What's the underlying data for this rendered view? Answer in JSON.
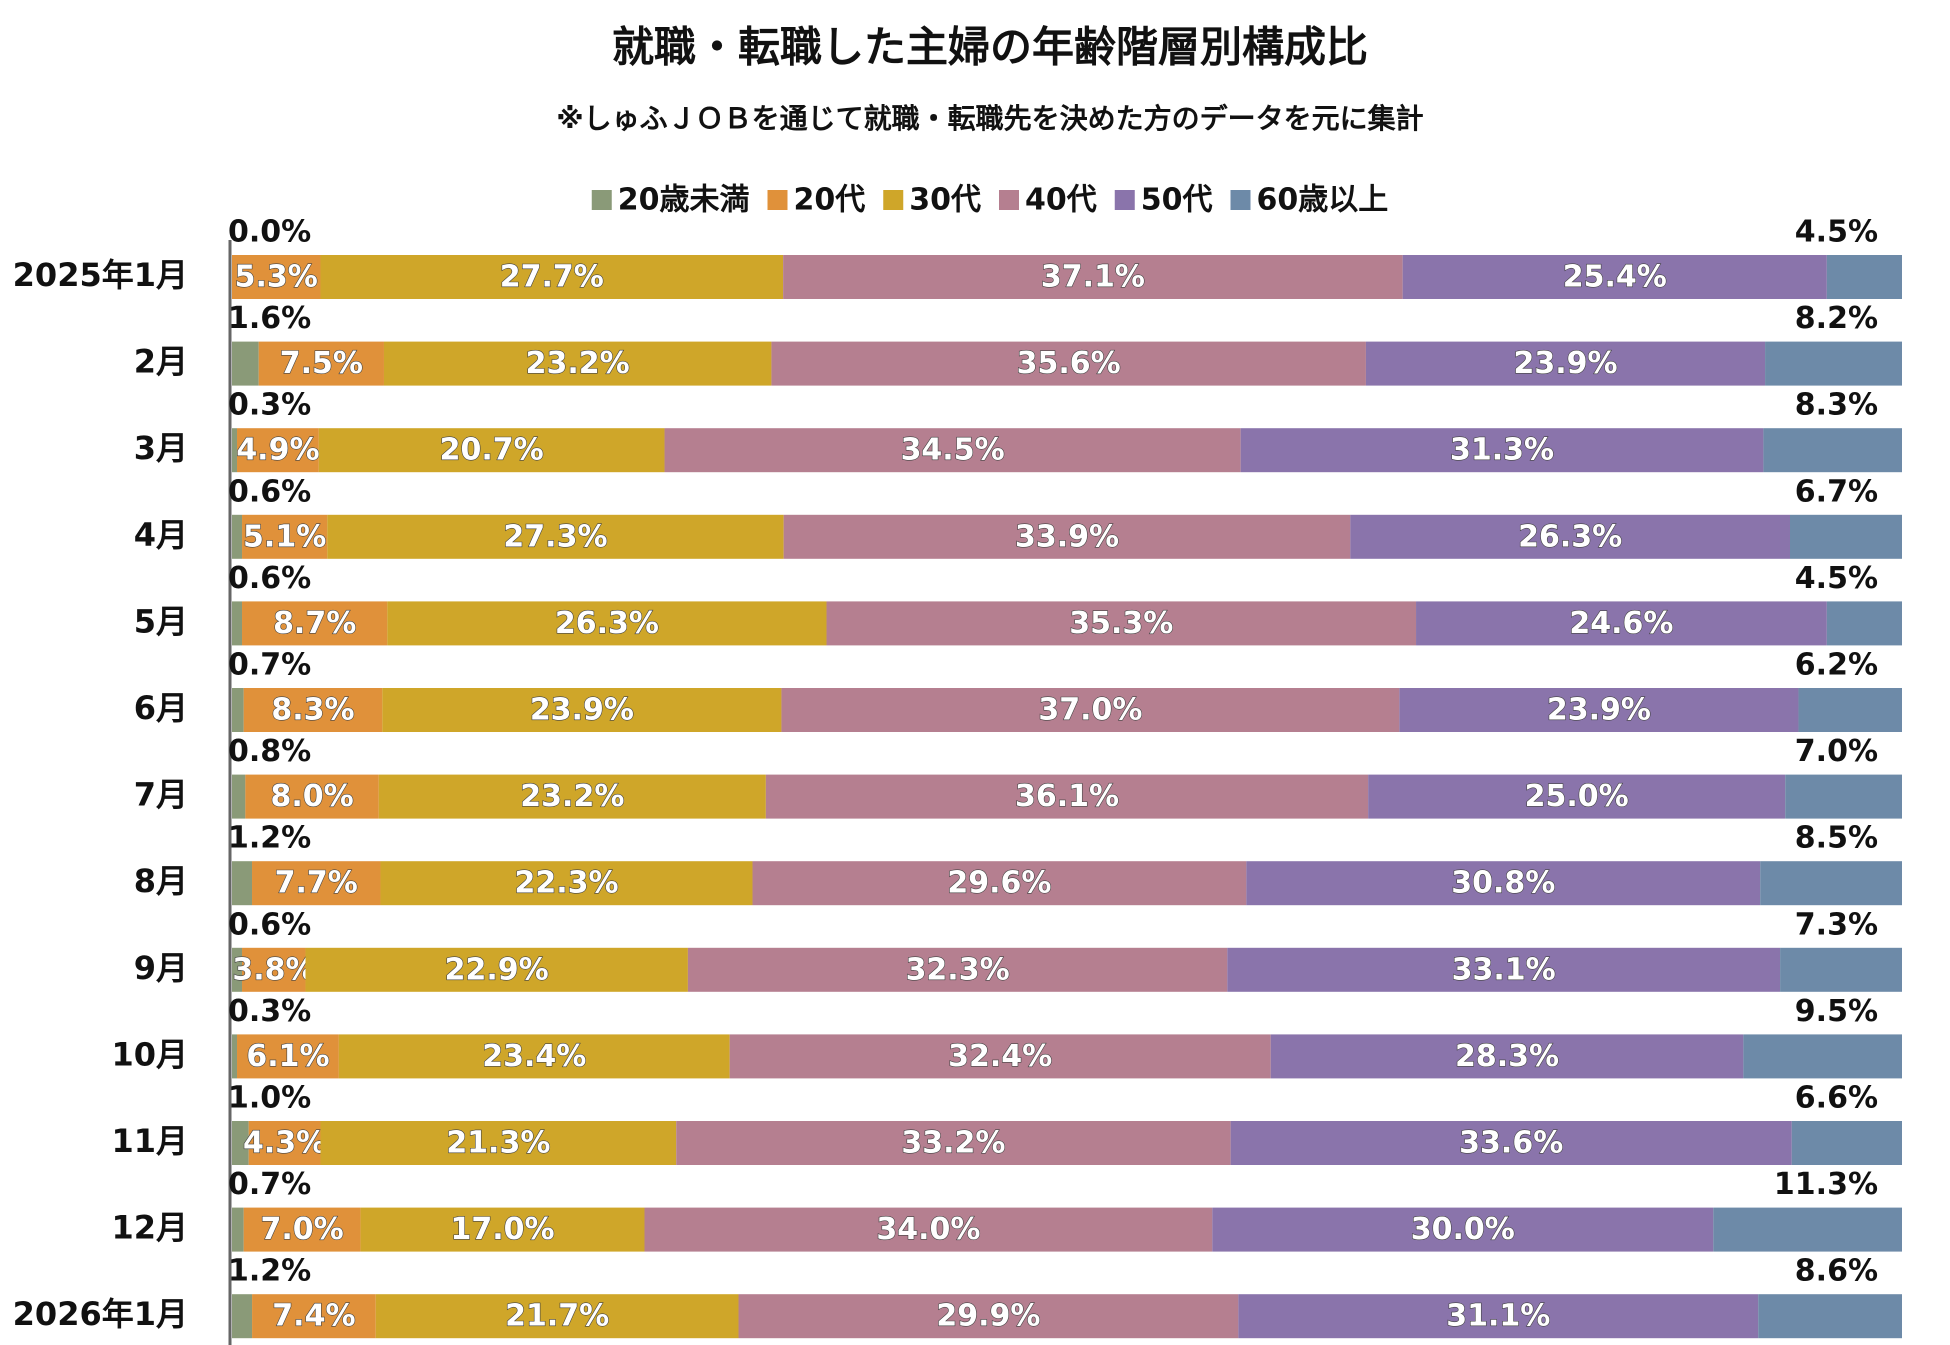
{
  "chart_data": {
    "type": "stacked-bar-horizontal",
    "title": "就職・転職した主婦の年齢階層別構成比",
    "subtitle": "※しゅふＪＯＢを通じて就職・転職先を決めた方のデータを元に集計",
    "categories": [
      "2025年1月",
      "2月",
      "3月",
      "4月",
      "5月",
      "6月",
      "7月",
      "8月",
      "9月",
      "10月",
      "11月",
      "12月",
      "2026年1月"
    ],
    "series": [
      {
        "name": "20歳未満",
        "color": "#8a9a78",
        "values": [
          0.0,
          1.6,
          0.3,
          0.6,
          0.6,
          0.7,
          0.8,
          1.2,
          0.6,
          0.3,
          1.0,
          0.7,
          1.2
        ],
        "value_labels": [
          "0.0%",
          "1.6%",
          "0.3%",
          "0.6%",
          "0.6%",
          "0.7%",
          "0.8%",
          "1.2%",
          "0.6%",
          "0.3%",
          "1.0%",
          "0.7%",
          "1.2%"
        ]
      },
      {
        "name": "20代",
        "color": "#e0913a",
        "values": [
          5.3,
          7.5,
          4.9,
          5.1,
          8.7,
          8.3,
          8.0,
          7.7,
          3.8,
          6.1,
          4.3,
          7.0,
          7.4
        ],
        "value_labels": [
          "5.3%",
          "7.5%",
          "4.9%",
          "5.1%",
          "8.7%",
          "8.3%",
          "8.0%",
          "7.7%",
          "3.8%",
          "6.1%",
          "4.3%",
          "7.0%",
          "7.4%"
        ]
      },
      {
        "name": "30代",
        "color": "#cfa629",
        "values": [
          27.7,
          23.2,
          20.7,
          27.3,
          26.3,
          23.9,
          23.2,
          22.3,
          22.9,
          23.4,
          21.3,
          17.0,
          21.7
        ],
        "value_labels": [
          "27.7%",
          "23.2%",
          "20.7%",
          "27.3%",
          "26.3%",
          "23.9%",
          "23.2%",
          "22.3%",
          "22.9%",
          "23.4%",
          "21.3%",
          "17.0%",
          "21.7%"
        ]
      },
      {
        "name": "40代",
        "color": "#b57f90",
        "values": [
          37.1,
          35.6,
          34.5,
          33.9,
          35.3,
          37.0,
          36.1,
          29.6,
          32.3,
          32.4,
          33.2,
          34.0,
          29.9
        ],
        "value_labels": [
          "37.1%",
          "35.6%",
          "34.5%",
          "33.9%",
          "35.3%",
          "37.0%",
          "36.1%",
          "29.6%",
          "32.3%",
          "32.4%",
          "33.2%",
          "34.0%",
          "29.9%"
        ]
      },
      {
        "name": "50代",
        "color": "#8a74ab",
        "values": [
          25.4,
          23.9,
          31.3,
          26.3,
          24.6,
          23.9,
          25.0,
          30.8,
          33.1,
          28.3,
          33.6,
          30.0,
          31.1
        ],
        "value_labels": [
          "25.4%",
          "23.9%",
          "31.3%",
          "26.3%",
          "24.6%",
          "23.9%",
          "25.0%",
          "30.8%",
          "33.1%",
          "28.3%",
          "33.6%",
          "30.0%",
          "31.1%"
        ]
      },
      {
        "name": "60歳以上",
        "color": "#6d8aa8",
        "values": [
          4.5,
          8.2,
          8.3,
          6.7,
          4.5,
          6.2,
          7.0,
          8.5,
          7.3,
          9.5,
          6.6,
          11.3,
          8.6
        ],
        "value_labels": [
          "4.5%",
          "8.2%",
          "8.3%",
          "6.7%",
          "4.5%",
          "6.2%",
          "7.0%",
          "8.5%",
          "7.3%",
          "9.5%",
          "6.6%",
          "11.3%",
          "8.6%"
        ]
      }
    ]
  }
}
